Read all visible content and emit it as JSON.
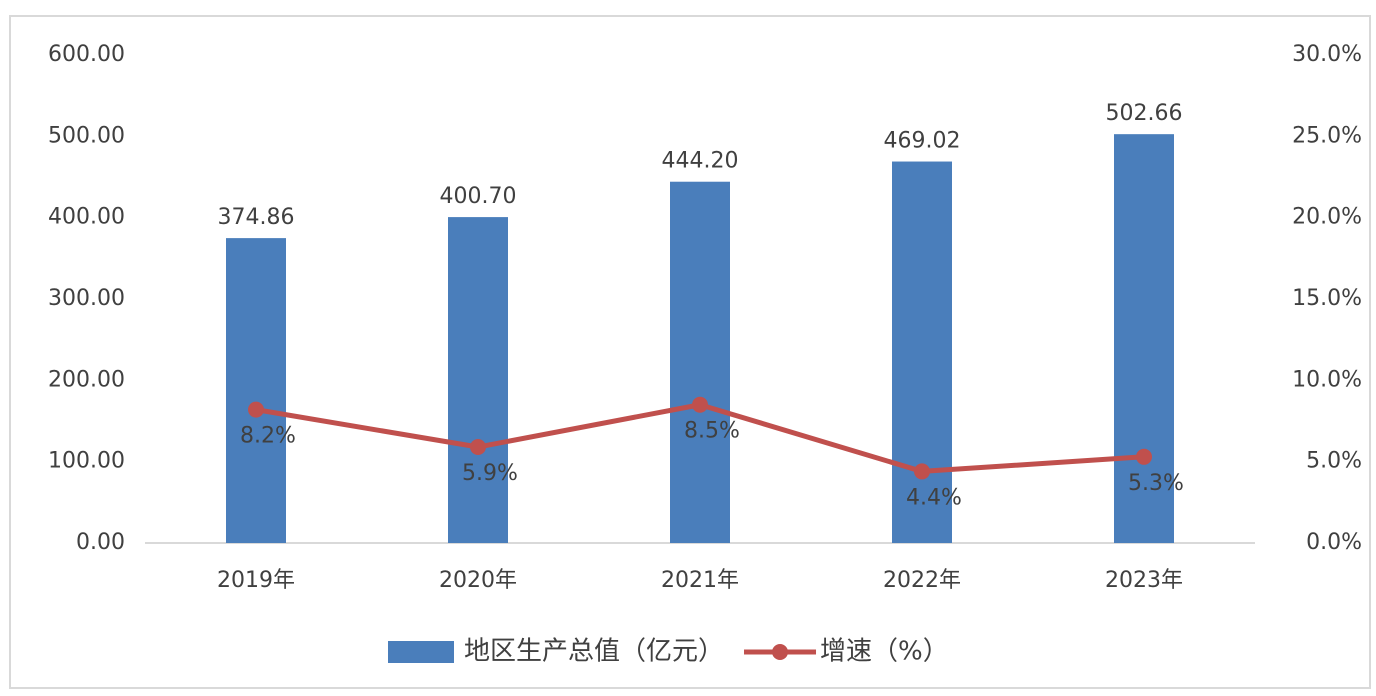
{
  "chart_data": {
    "type": "bar",
    "categories": [
      "2019年",
      "2020年",
      "2021年",
      "2022年",
      "2023年"
    ],
    "series": [
      {
        "name": "地区生产总值（亿元）",
        "type": "bar",
        "color": "#4a7ebb",
        "values": [
          374.86,
          400.7,
          444.2,
          469.02,
          502.66
        ],
        "value_labels": [
          "374.86",
          "400.70",
          "444.20",
          "469.02",
          "502.66"
        ]
      },
      {
        "name": "增速（%）",
        "type": "line",
        "axis": "y2",
        "color": "#c0504d",
        "values": [
          8.2,
          5.9,
          8.5,
          4.4,
          5.3
        ],
        "value_labels": [
          "8.2%",
          "5.9%",
          "8.5%",
          "4.4%",
          "5.3%"
        ]
      }
    ],
    "ylim": [
      0,
      600
    ],
    "yticks": [
      {
        "value": 0,
        "label": "0.00"
      },
      {
        "value": 100,
        "label": "100.00"
      },
      {
        "value": 200,
        "label": "200.00"
      },
      {
        "value": 300,
        "label": "300.00"
      },
      {
        "value": 400,
        "label": "400.00"
      },
      {
        "value": 500,
        "label": "500.00"
      },
      {
        "value": 600,
        "label": "600.00"
      }
    ],
    "y2lim": [
      0,
      30
    ],
    "y2ticks": [
      {
        "value": 0,
        "label": "0.0%"
      },
      {
        "value": 5,
        "label": "5.0%"
      },
      {
        "value": 10,
        "label": "10.0%"
      },
      {
        "value": 15,
        "label": "15.0%"
      },
      {
        "value": 20,
        "label": "20.0%"
      },
      {
        "value": 25,
        "label": "25.0%"
      },
      {
        "value": 30,
        "label": "30.0%"
      }
    ],
    "grid": false,
    "legend": "bottom"
  }
}
